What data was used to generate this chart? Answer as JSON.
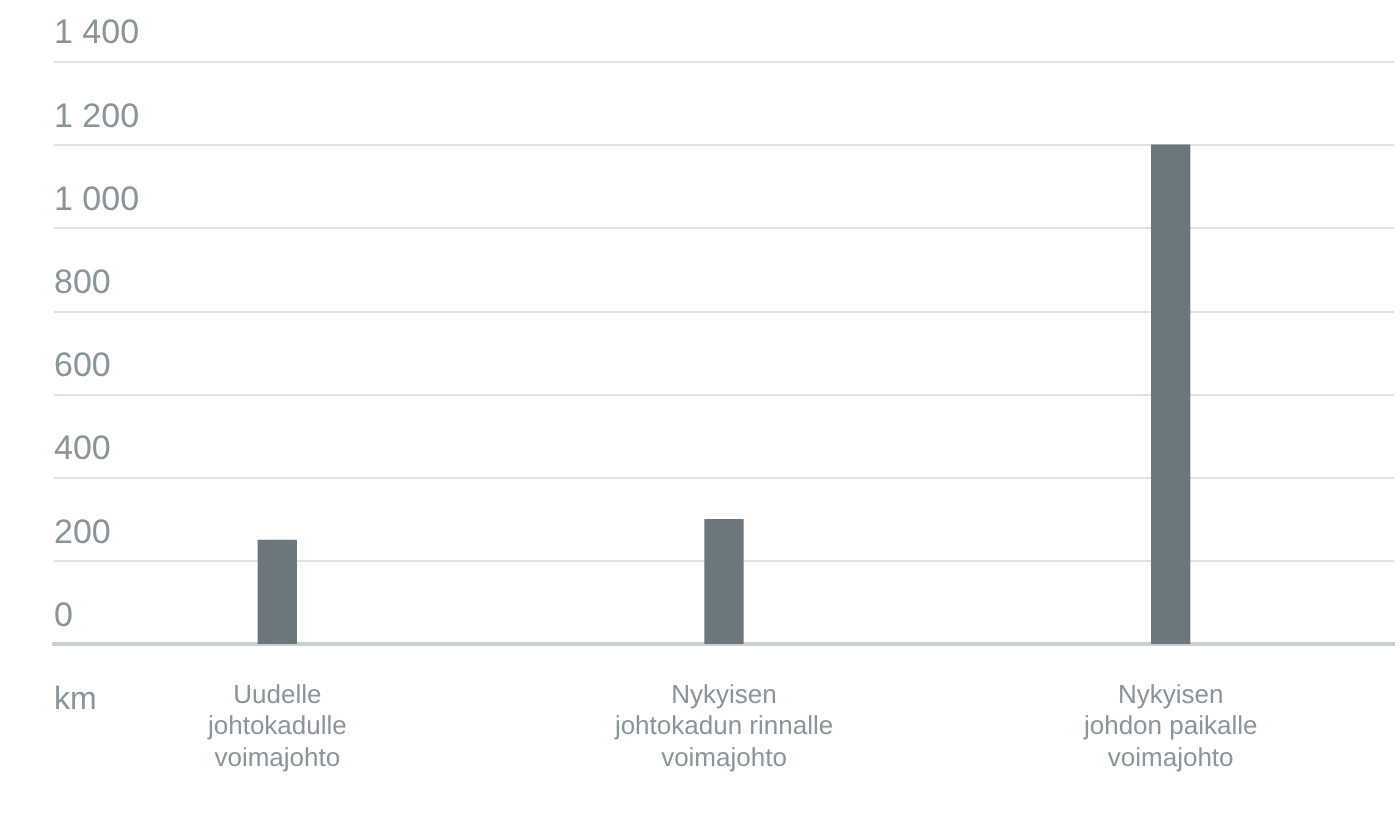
{
  "chart_data": {
    "type": "bar",
    "annotations": [
      "km"
    ],
    "categories": [
      "Uudelle\njohtokadulle\nvoimajohto",
      "Nykyisen\njohtokadun rinnalle\nvoimajohto",
      "Nykyisen\njohdon paikalle\nvoimajohto"
    ],
    "values": [
      250,
      300,
      1200
    ],
    "color": "#6b777c",
    "ylim": [
      0,
      1400
    ],
    "yticks": [
      0,
      200,
      400,
      600,
      800,
      {
        "value": 1000,
        "label": "1 000"
      },
      {
        "value": 1200,
        "label": "1 200"
      },
      {
        "value": 1400,
        "label": "1 400"
      }
    ],
    "grid": "y",
    "legend": false
  }
}
